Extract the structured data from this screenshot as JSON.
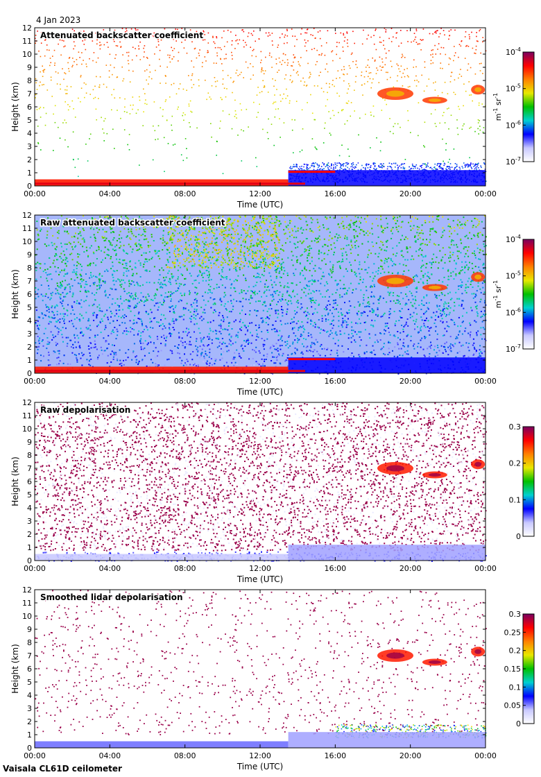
{
  "header": {
    "date": "4 Jan 2023"
  },
  "footer": {
    "instrument": "Vaisala CL61D ceilometer"
  },
  "colors": {
    "white": "#ffffff",
    "lavender": "#c8c8ff",
    "blue": "#0000ff",
    "cyan": "#00d0d0",
    "green": "#00c000",
    "yellow": "#e8e800",
    "orange": "#ff8000",
    "red": "#ff0000",
    "purple": "#7a0060"
  },
  "chart_data": [
    {
      "type": "heatmap",
      "title": "Attenuated backscatter coefficient",
      "xlabel": "Time (UTC)",
      "ylabel": "Height (km)",
      "x_ticks": [
        "00:00",
        "04:00",
        "08:00",
        "12:00",
        "16:00",
        "20:00",
        "00:00"
      ],
      "y_ticks": [
        "0",
        "1",
        "2",
        "3",
        "4",
        "5",
        "6",
        "7",
        "8",
        "9",
        "10",
        "11",
        "12"
      ],
      "ylim": [
        0,
        12
      ],
      "colorbar": {
        "scale": "log",
        "ticks": [
          {
            "base": "10",
            "exp": "-7",
            "value": -7
          },
          {
            "base": "10",
            "exp": "-6",
            "value": -6
          },
          {
            "base": "10",
            "exp": "-5",
            "value": -5
          },
          {
            "base": "10",
            "exp": "-4",
            "value": -4
          }
        ],
        "range": [
          -7,
          -4
        ],
        "unit_main": "m",
        "unit_exp1": "-1",
        "unit_mid": " sr",
        "unit_exp2": "-1"
      }
    },
    {
      "type": "heatmap",
      "title": "Raw attenuated backscatter coefficient",
      "xlabel": "Time (UTC)",
      "ylabel": "Height (km)",
      "x_ticks": [
        "00:00",
        "04:00",
        "08:00",
        "12:00",
        "16:00",
        "20:00",
        "00:00"
      ],
      "y_ticks": [
        "0",
        "1",
        "2",
        "3",
        "4",
        "5",
        "6",
        "7",
        "8",
        "9",
        "10",
        "11",
        "12"
      ],
      "ylim": [
        0,
        12
      ],
      "colorbar": {
        "scale": "log",
        "ticks": [
          {
            "base": "10",
            "exp": "-7",
            "value": -7
          },
          {
            "base": "10",
            "exp": "-6",
            "value": -6
          },
          {
            "base": "10",
            "exp": "-5",
            "value": -5
          },
          {
            "base": "10",
            "exp": "-4",
            "value": -4
          }
        ],
        "range": [
          -7,
          -4
        ],
        "unit_main": "m",
        "unit_exp1": "-1",
        "unit_mid": " sr",
        "unit_exp2": "-1"
      }
    },
    {
      "type": "heatmap",
      "title": "Raw depolarisation",
      "xlabel": "Time (UTC)",
      "ylabel": "Height (km)",
      "x_ticks": [
        "00:00",
        "04:00",
        "08:00",
        "12:00",
        "16:00",
        "20:00",
        "00:00"
      ],
      "y_ticks": [
        "0",
        "1",
        "2",
        "3",
        "4",
        "5",
        "6",
        "7",
        "8",
        "9",
        "10",
        "11",
        "12"
      ],
      "ylim": [
        0,
        12
      ],
      "colorbar": {
        "scale": "linear",
        "ticks": [
          {
            "label": "0",
            "value": 0
          },
          {
            "label": "0.1",
            "value": 0.1
          },
          {
            "label": "0.2",
            "value": 0.2
          },
          {
            "label": "0.3",
            "value": 0.3
          }
        ],
        "range": [
          0,
          0.3
        ]
      }
    },
    {
      "type": "heatmap",
      "title": "Smoothed lidar depolarisation",
      "xlabel": "Time (UTC)",
      "ylabel": "Height (km)",
      "x_ticks": [
        "00:00",
        "04:00",
        "08:00",
        "12:00",
        "16:00",
        "20:00",
        "00:00"
      ],
      "y_ticks": [
        "0",
        "1",
        "2",
        "3",
        "4",
        "5",
        "6",
        "7",
        "8",
        "9",
        "10",
        "11",
        "12"
      ],
      "ylim": [
        0,
        12
      ],
      "colorbar": {
        "scale": "linear",
        "ticks": [
          {
            "label": "0",
            "value": 0
          },
          {
            "label": "0.05",
            "value": 0.05
          },
          {
            "label": "0.1",
            "value": 0.1
          },
          {
            "label": "0.15",
            "value": 0.15
          },
          {
            "label": "0.2",
            "value": 0.2
          },
          {
            "label": "0.25",
            "value": 0.25
          },
          {
            "label": "0.3",
            "value": 0.3
          }
        ],
        "range": [
          0,
          0.3
        ]
      }
    }
  ]
}
